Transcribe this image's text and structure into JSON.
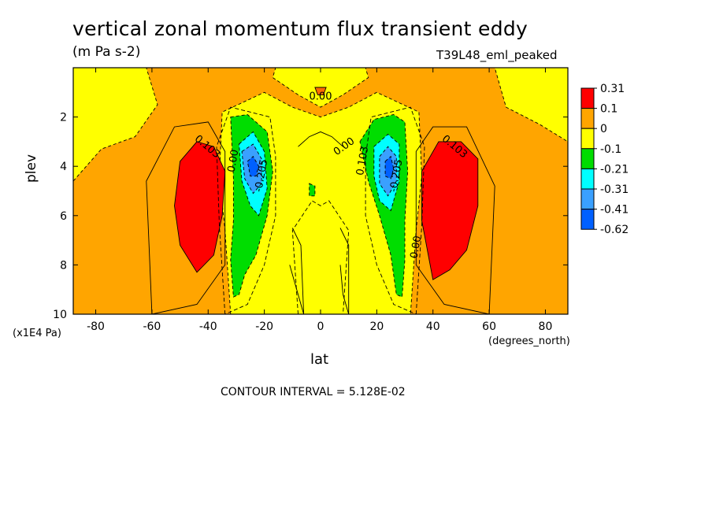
{
  "chart_data": {
    "type": "heatmap",
    "title": "vertical zonal momentum flux transient eddy",
    "units": "(m Pa s-2)",
    "run_label": "T39L48_eml_peaked",
    "xlabel": "lat",
    "xunit": "(degrees_north)",
    "ylabel": "plev",
    "yunit": "(x1E4 Pa)",
    "xlim": [
      -88,
      88
    ],
    "ylim": [
      10,
      0
    ],
    "x_ticks": [
      -80,
      -60,
      -40,
      -20,
      0,
      20,
      40,
      60,
      80
    ],
    "y_ticks": [
      2,
      4,
      6,
      8,
      10
    ],
    "contour_interval_text": "CONTOUR INTERVAL = 5.128E-02",
    "colorbar_labels": [
      "0.31",
      "0.1",
      "0",
      "-0.1",
      "-0.21",
      "-0.31",
      "-0.41",
      "-0.62"
    ],
    "colorbar_colors": [
      "#ff0000",
      "#ffa500",
      "#ffff00",
      "#00dd00",
      "#00ffff",
      "#3aa0ff",
      "#0060ff"
    ],
    "regions": [
      {
        "name": "background",
        "level": "0 to 0.1",
        "color": "#ffa500"
      },
      {
        "name": "upper yellow NW",
        "level": "-0.1 to 0",
        "color": "#ffff00",
        "points": [
          [
            -88,
            0
          ],
          [
            -62,
            0
          ],
          [
            -58,
            1.5
          ],
          [
            -66,
            2.8
          ],
          [
            -78,
            3.3
          ],
          [
            -88,
            4.6
          ]
        ]
      },
      {
        "name": "upper yellow NE",
        "level": "-0.1 to 0",
        "color": "#ffff00",
        "points": [
          [
            62,
            0
          ],
          [
            88,
            0
          ],
          [
            88,
            3.0
          ],
          [
            78,
            2.3
          ],
          [
            66,
            1.6
          ]
        ]
      },
      {
        "name": "top center yellow",
        "level": "-0.1 to 0",
        "color": "#ffff00",
        "points": [
          [
            -16,
            0
          ],
          [
            16,
            0
          ],
          [
            17,
            0.4
          ],
          [
            8,
            1.1
          ],
          [
            0,
            1.6
          ],
          [
            -8,
            1.1
          ],
          [
            -17,
            0.4
          ]
        ]
      },
      {
        "name": "lower central yellow",
        "level": "-0.1 to 0",
        "color": "#ffff00",
        "points": [
          [
            -32,
            10
          ],
          [
            -34,
            6.6
          ],
          [
            -36,
            4.4
          ],
          [
            -35,
            1.8
          ],
          [
            -20,
            1.0
          ],
          [
            -10,
            1.6
          ],
          [
            0,
            2.0
          ],
          [
            10,
            1.6
          ],
          [
            20,
            1.0
          ],
          [
            35,
            1.8
          ],
          [
            36,
            4.4
          ],
          [
            34,
            6.6
          ],
          [
            32,
            10
          ]
        ]
      },
      {
        "name": "SH green",
        "level": "-0.21 to -0.1",
        "color": "#00dd00",
        "points": [
          [
            -32,
            2.0
          ],
          [
            -26,
            1.9
          ],
          [
            -19,
            2.6
          ],
          [
            -17,
            4.2
          ],
          [
            -19,
            6.0
          ],
          [
            -23,
            7.6
          ],
          [
            -27,
            8.4
          ],
          [
            -29,
            9.2
          ],
          [
            -31,
            9.3
          ],
          [
            -32,
            7.8
          ],
          [
            -31,
            6.2
          ],
          [
            -31,
            4.5
          ]
        ]
      },
      {
        "name": "NH green",
        "level": "-0.21 to -0.1",
        "color": "#00dd00",
        "points": [
          [
            14,
            3.0
          ],
          [
            19,
            2.1
          ],
          [
            26,
            1.9
          ],
          [
            30,
            2.2
          ],
          [
            31,
            4.2
          ],
          [
            30,
            6.2
          ],
          [
            30,
            7.8
          ],
          [
            29,
            9.3
          ],
          [
            27,
            9.2
          ],
          [
            25,
            7.6
          ],
          [
            21,
            6.0
          ],
          [
            17,
            4.6
          ]
        ]
      },
      {
        "name": "SH cyan",
        "level": "-0.31 to -0.21",
        "color": "#00ffff",
        "points": [
          [
            -29,
            3.1
          ],
          [
            -24,
            2.6
          ],
          [
            -20,
            3.4
          ],
          [
            -19,
            4.9
          ],
          [
            -22,
            6.0
          ],
          [
            -25,
            5.6
          ],
          [
            -28,
            4.6
          ]
        ]
      },
      {
        "name": "NH cyan",
        "level": "-0.31 to -0.21",
        "color": "#00ffff",
        "points": [
          [
            19,
            3.2
          ],
          [
            24,
            2.7
          ],
          [
            28,
            3.1
          ],
          [
            28,
            4.6
          ],
          [
            25,
            5.8
          ],
          [
            21,
            5.4
          ],
          [
            19,
            4.4
          ]
        ]
      },
      {
        "name": "SH light blue",
        "level": "-0.41 to -0.31",
        "color": "#3aa0ff",
        "points": [
          [
            -28,
            3.4
          ],
          [
            -24,
            3.1
          ],
          [
            -21,
            3.7
          ],
          [
            -21,
            4.7
          ],
          [
            -24,
            5.1
          ],
          [
            -27,
            4.5
          ]
        ]
      },
      {
        "name": "NH light blue",
        "level": "-0.41 to -0.31",
        "color": "#3aa0ff",
        "points": [
          [
            21,
            3.6
          ],
          [
            24,
            3.2
          ],
          [
            27,
            3.6
          ],
          [
            27,
            4.6
          ],
          [
            24,
            5.2
          ],
          [
            21,
            4.7
          ]
        ]
      },
      {
        "name": "SH blue core",
        "level": "-0.62 to -0.41",
        "color": "#0060ff",
        "points": [
          [
            -26,
            3.8
          ],
          [
            -24,
            3.6
          ],
          [
            -22,
            4.0
          ],
          [
            -23,
            4.4
          ],
          [
            -25,
            4.4
          ]
        ]
      },
      {
        "name": "NH blue core",
        "level": "-0.62 to -0.41",
        "color": "#0060ff",
        "points": [
          [
            23,
            3.8
          ],
          [
            25,
            3.6
          ],
          [
            26,
            4.1
          ],
          [
            25,
            4.5
          ],
          [
            23,
            4.4
          ]
        ]
      },
      {
        "name": "SH red",
        "level": "0.1 to 0.31",
        "color": "#ff0000",
        "points": [
          [
            -50,
            3.8
          ],
          [
            -44,
            3.0
          ],
          [
            -38,
            3.2
          ],
          [
            -34,
            4.2
          ],
          [
            -35,
            6.0
          ],
          [
            -38,
            7.6
          ],
          [
            -44,
            8.3
          ],
          [
            -50,
            7.2
          ],
          [
            -52,
            5.6
          ]
        ]
      },
      {
        "name": "NH red",
        "level": "0.1 to 0.31",
        "color": "#ff0000",
        "points": [
          [
            36,
            4.2
          ],
          [
            42,
            3.0
          ],
          [
            50,
            3.0
          ],
          [
            56,
            3.7
          ],
          [
            56,
            5.6
          ],
          [
            52,
            7.4
          ],
          [
            46,
            8.2
          ],
          [
            40,
            8.6
          ],
          [
            36,
            6.2
          ]
        ]
      },
      {
        "name": "small green patch",
        "level": "-0.21 to -0.1",
        "color": "#00dd00",
        "points": [
          [
            -4,
            4.7
          ],
          [
            -2,
            4.8
          ],
          [
            -2,
            5.2
          ],
          [
            -4,
            5.2
          ]
        ]
      },
      {
        "name": "small top red",
        "level": "0.1 to 0.31",
        "color": "#ff6a00",
        "points": [
          [
            -2,
            0.8
          ],
          [
            2,
            0.8
          ],
          [
            1,
            1.1
          ],
          [
            -1,
            1.1
          ]
        ]
      }
    ],
    "contour_lines": [
      {
        "style": "dashed",
        "points": [
          [
            -34,
            10
          ],
          [
            -36,
            6.4
          ],
          [
            -37,
            3.2
          ],
          [
            -32,
            1.6
          ],
          [
            -18,
            2.0
          ],
          [
            -16,
            3.6
          ],
          [
            -16,
            6.0
          ],
          [
            -20,
            8.0
          ],
          [
            -26,
            9.6
          ],
          [
            -34,
            10
          ]
        ]
      },
      {
        "style": "dashed",
        "points": [
          [
            34,
            10
          ],
          [
            36,
            6.4
          ],
          [
            37,
            3.2
          ],
          [
            32,
            1.6
          ],
          [
            18,
            2.0
          ],
          [
            16,
            3.6
          ],
          [
            16,
            6.0
          ],
          [
            20,
            8.0
          ],
          [
            26,
            9.6
          ],
          [
            34,
            10
          ]
        ]
      },
      {
        "style": "dashed",
        "points": [
          [
            -8,
            10
          ],
          [
            -10,
            6.6
          ],
          [
            -3,
            5.4
          ],
          [
            0,
            5.6
          ],
          [
            3,
            5.4
          ],
          [
            10,
            6.6
          ],
          [
            8,
            10
          ]
        ]
      },
      {
        "style": "solid",
        "points": [
          [
            -60,
            10
          ],
          [
            -62,
            4.6
          ],
          [
            -52,
            2.4
          ],
          [
            -40,
            2.2
          ],
          [
            -34,
            3.4
          ],
          [
            -34,
            8.0
          ],
          [
            -44,
            9.6
          ],
          [
            -60,
            10
          ]
        ]
      },
      {
        "style": "solid",
        "points": [
          [
            60,
            10
          ],
          [
            62,
            4.8
          ],
          [
            52,
            2.4
          ],
          [
            40,
            2.4
          ],
          [
            34,
            3.4
          ],
          [
            34,
            8.0
          ],
          [
            44,
            9.6
          ],
          [
            60,
            10
          ]
        ]
      },
      {
        "style": "solid",
        "points": [
          [
            -8,
            3.2
          ],
          [
            -4,
            2.8
          ],
          [
            0,
            2.6
          ],
          [
            4,
            2.8
          ],
          [
            8,
            3.2
          ]
        ]
      },
      {
        "style": "solid",
        "points": [
          [
            -10,
            6.5
          ],
          [
            -7,
            7.2
          ],
          [
            -6,
            10
          ],
          [
            -8,
            9.2
          ],
          [
            -11,
            8.0
          ]
        ]
      },
      {
        "style": "solid",
        "points": [
          [
            7,
            6.5
          ],
          [
            10,
            7.2
          ],
          [
            10,
            10
          ],
          [
            8,
            9.2
          ],
          [
            7,
            8.0
          ]
        ]
      }
    ],
    "contour_labels": [
      {
        "text": "0.00",
        "x": 0,
        "y": 1.3,
        "angle": 0
      },
      {
        "text": "0.00",
        "x": 9,
        "y": 3.3,
        "angle": -35
      },
      {
        "text": "0.103",
        "x": -41,
        "y": 3.3,
        "angle": 40
      },
      {
        "text": "0.103",
        "x": 47,
        "y": 3.3,
        "angle": 40
      },
      {
        "text": "0.00",
        "x": -30,
        "y": 3.8,
        "angle": -80
      },
      {
        "text": "-0.205",
        "x": -20,
        "y": 4.4,
        "angle": -80
      },
      {
        "text": "0.103",
        "x": 16,
        "y": 3.8,
        "angle": -80
      },
      {
        "text": "-0.205",
        "x": 28,
        "y": 4.4,
        "angle": -80
      },
      {
        "text": "0.00",
        "x": 35,
        "y": 7.3,
        "angle": -80
      }
    ]
  }
}
